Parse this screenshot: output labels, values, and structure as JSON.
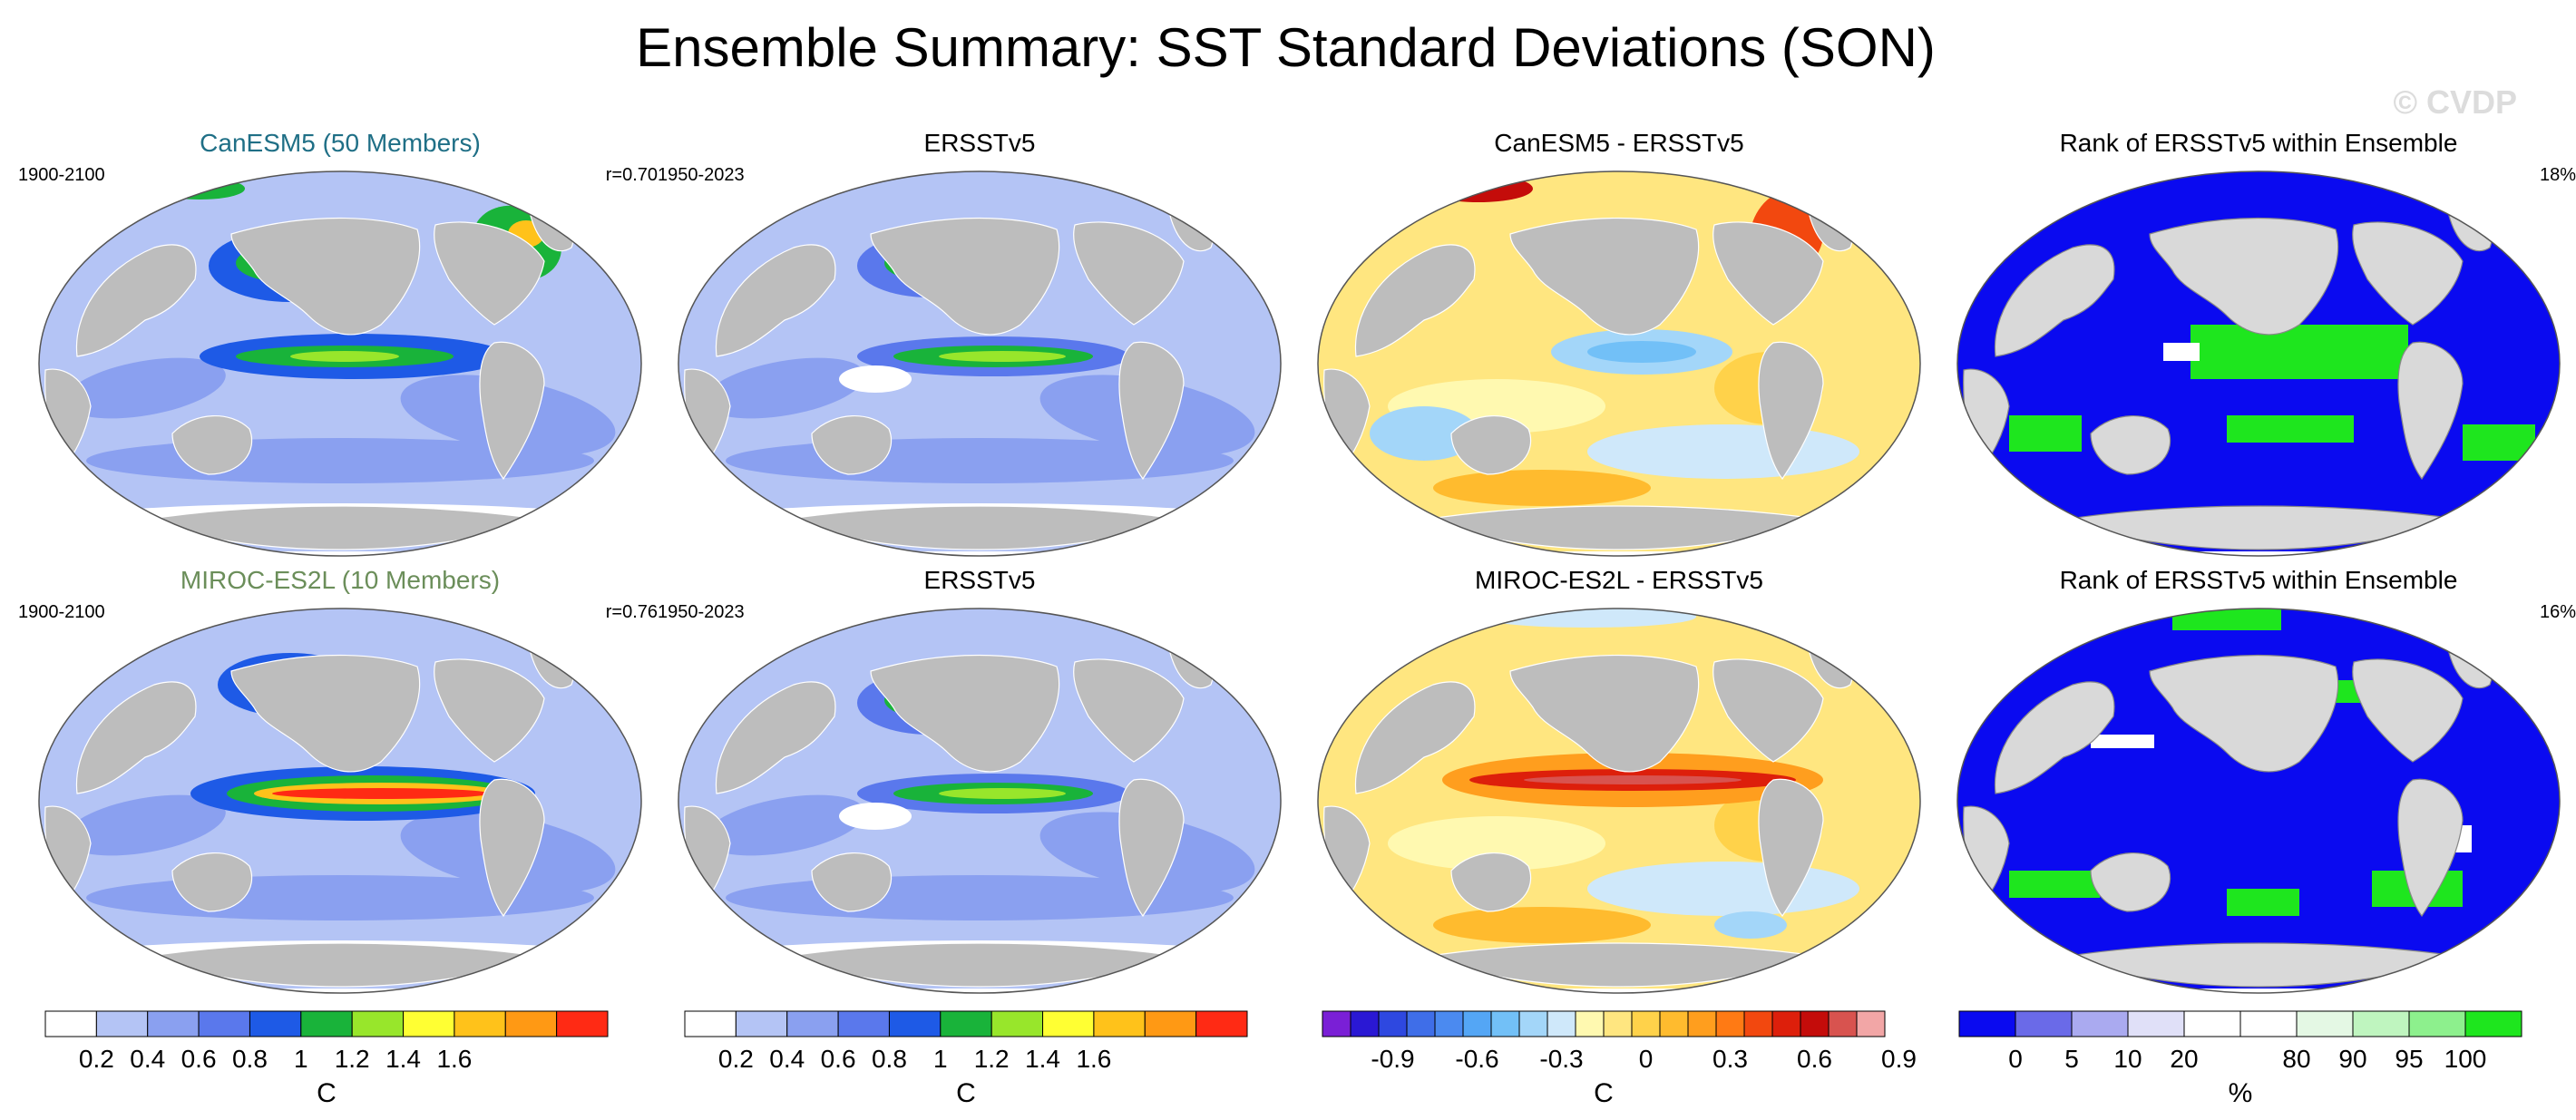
{
  "title": "Ensemble Summary: SST Standard Deviations (SON)",
  "watermark": "© CVDP",
  "colors": {
    "land": "#bdbdbd",
    "rank_land": "#d9d9d9",
    "ocean_sst": "#a9bdf2",
    "model_title_1": "#1f6f86",
    "model_title_2": "#6b8e5a"
  },
  "rows": [
    {
      "panels": [
        {
          "title": "CanESM5 (50 Members)",
          "left": "1900-2100",
          "right": "r=0.70",
          "kind": "sst",
          "variant": 1
        },
        {
          "title": "ERSSTv5",
          "left": "1950-2023",
          "right": "",
          "kind": "sst",
          "variant": 2
        },
        {
          "title": "CanESM5 - ERSSTv5",
          "left": "",
          "right": "",
          "kind": "diff",
          "variant": 1
        },
        {
          "title": "Rank of ERSSTv5 within Ensemble",
          "left": "",
          "right": "18%",
          "kind": "rank",
          "variant": 1
        }
      ]
    },
    {
      "panels": [
        {
          "title": "MIROC-ES2L (10 Members)",
          "left": "1900-2100",
          "right": "r=0.76",
          "kind": "sst",
          "variant": 3
        },
        {
          "title": "ERSSTv5",
          "left": "1950-2023",
          "right": "",
          "kind": "sst",
          "variant": 2
        },
        {
          "title": "MIROC-ES2L - ERSSTv5",
          "left": "",
          "right": "",
          "kind": "diff",
          "variant": 2
        },
        {
          "title": "Rank of ERSSTv5 within Ensemble",
          "left": "",
          "right": "16%",
          "kind": "rank",
          "variant": 2
        }
      ]
    }
  ],
  "colorbars": [
    {
      "unit": "C",
      "colors": [
        "#ffffff",
        "#b4c4f5",
        "#8aa0f0",
        "#5a78ec",
        "#1e5ae6",
        "#19b33a",
        "#98e62b",
        "#ffff33",
        "#ffc21a",
        "#ff9914",
        "#ff2a14"
      ],
      "labels": [
        "0.2",
        "0.4",
        "0.6",
        "0.8",
        "1",
        "1.2",
        "1.4",
        "1.6"
      ]
    },
    {
      "unit": "C",
      "colors": [
        "#ffffff",
        "#b4c4f5",
        "#8aa0f0",
        "#5a78ec",
        "#1e5ae6",
        "#19b33a",
        "#98e62b",
        "#ffff33",
        "#ffc21a",
        "#ff9914",
        "#ff2a14"
      ],
      "labels": [
        "0.2",
        "0.4",
        "0.6",
        "0.8",
        "1",
        "1.2",
        "1.4",
        "1.6"
      ]
    },
    {
      "unit": "C",
      "colors": [
        "#7a1fd6",
        "#2a18d4",
        "#2e48e0",
        "#3f6ee8",
        "#4b8af0",
        "#54a6f5",
        "#72c0f7",
        "#a3d6f9",
        "#cfe8fa",
        "#fff9b0",
        "#ffe680",
        "#ffd24a",
        "#ffbb2e",
        "#ff9e1e",
        "#ff7a14",
        "#f2480f",
        "#dd1f0b",
        "#c40c0a",
        "#d8534f",
        "#f2a6a6"
      ],
      "labels": [
        "-0.9",
        "-0.6",
        "-0.3",
        "0",
        "0.3",
        "0.6",
        "0.9"
      ]
    },
    {
      "unit": "%",
      "colors": [
        "#0a0af0",
        "#6a6ae8",
        "#aaaaf0",
        "#e0e0f8",
        "#ffffff",
        "#ffffff",
        "#e4f8e4",
        "#bff5bf",
        "#8df08d",
        "#1ee61e"
      ],
      "labels": [
        "0",
        "5",
        "10",
        "20",
        "80",
        "90",
        "95",
        "100"
      ]
    }
  ]
}
